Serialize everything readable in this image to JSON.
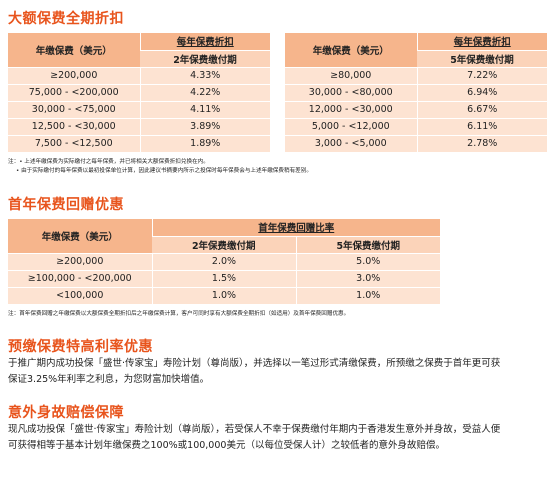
{
  "sections": {
    "s1_title": "大额保费全期折扣",
    "s2_title": "首年保费回赠优惠",
    "s3_title": "预缴保费特高利率优惠",
    "s4_title": "意外身故赔偿保障"
  },
  "table1_left": {
    "col1": "年缴保费（美元）",
    "col2_top": "每年保费折扣",
    "col2_bottom": "2年保费缴付期",
    "rows": [
      [
        "≥200,000",
        "4.33%"
      ],
      [
        "75,000 - <200,000",
        "4.22%"
      ],
      [
        "30,000 - <75,000",
        "4.11%"
      ],
      [
        "12,500 - <30,000",
        "3.89%"
      ],
      [
        "7,500 - <12,500",
        "1.89%"
      ]
    ]
  },
  "table1_right": {
    "col1": "年缴保费（美元）",
    "col2_top": "每年保费折扣",
    "col2_bottom": "5年保费缴付期",
    "rows": [
      [
        "≥80,000",
        "7.22%"
      ],
      [
        "30,000 - <80,000",
        "6.94%"
      ],
      [
        "12,000 - <30,000",
        "6.67%"
      ],
      [
        "5,000 - <12,000",
        "6.11%"
      ],
      [
        "3,000 - <5,000",
        "2.78%"
      ]
    ]
  },
  "note1_line1": "注：• 上述年缴保费为实际缴付之每年保费，并已将相关大额保费折扣兑换在内。",
  "note1_line2": "• 由于实际缴付的每年保费以最初投保单位计算，因此建议书摘要内所示之投保时每年保费会与上述年缴保费稍有差别。",
  "table2": {
    "col1": "年缴保费（美元）",
    "group": "首年保费回赠比率",
    "sub1": "2年保费缴付期",
    "sub2": "5年保费缴付期",
    "rows": [
      [
        "≥200,000",
        "2.0%",
        "5.0%"
      ],
      [
        "≥100,000 - <200,000",
        "1.5%",
        "3.0%"
      ],
      [
        "<100,000",
        "1.0%",
        "1.0%"
      ]
    ]
  },
  "note2": "注：首年保费回赠之年缴保费以大额保费全期折扣后之年缴保费计算，客户可同时享有大额保费全期折扣（如适用）及首年保费回赠优惠。",
  "para3_line1": "于推广期内成功投保「盛世·传家宝」寿险计划（尊尚版），并选择以一笔过形式清缴保费，所预缴之保费于首年更可获",
  "para3_line2": "保证3.25%年利率之利息，为您财富加快增值。",
  "para4_line1": "现凡成功投保「盛世·传家宝」寿险计划（尊尚版），若受保人不幸于保费缴付年期内于香港发生意外并身故，受益人便",
  "para4_line2": "可获得相等于基本计划年缴保费之100%或100,000美元（以每位受保人计）之较低者的意外身故赔偿。"
}
